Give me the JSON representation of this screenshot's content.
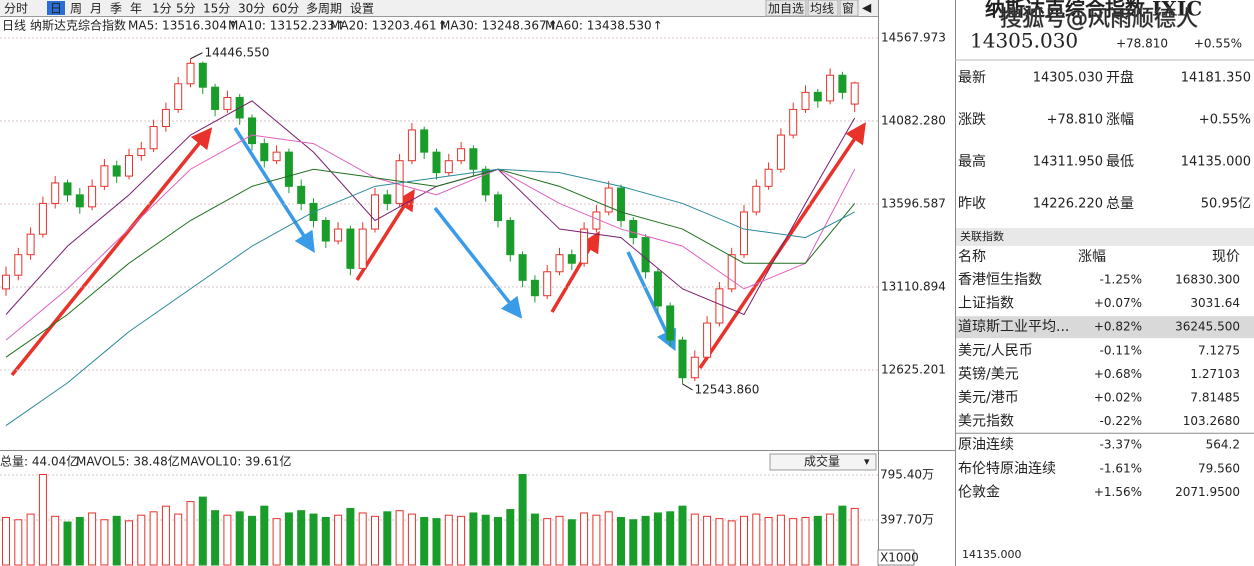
{
  "toolbar": {
    "tabs": [
      "分时",
      "日",
      "周",
      "月",
      "季",
      "年",
      "1分",
      "5分",
      "15分",
      "30分",
      "60分",
      "多周期",
      "设置"
    ],
    "buttons": [
      "加自选",
      "均线",
      "窗"
    ]
  },
  "legend": {
    "period": "日线",
    "name": "纳斯达克综合指数",
    "items": [
      {
        "label": "MA5: 13516.304",
        "arrow": "↑",
        "color": "#2b5566"
      },
      {
        "label": "MA10: 13152.233",
        "arrow": "↑",
        "color": "#7a1f6e"
      },
      {
        "label": "MA20: 13203.461",
        "arrow": "↑",
        "color": "#e060c0"
      },
      {
        "label": "MA30: 13248.367",
        "arrow": "↑",
        "color": "#1f6f1f"
      },
      {
        "label": "MA60: 13438.530",
        "arrow": "↑",
        "color": "#2a8a9a"
      }
    ]
  },
  "price_axis": {
    "ylim": [
      12157.1,
      14614.8
    ],
    "ticks": [
      14567.973,
      {
        "value": 14082.28,
        "label": "14082.280"
      },
      13596.587,
      13110.894,
      12625.201
    ]
  },
  "annotations": {
    "high": "14446.550",
    "low": "12543.860"
  },
  "candles": [
    [
      13100,
      13230,
      13060,
      13180
    ],
    [
      13180,
      13340,
      13150,
      13300
    ],
    [
      13300,
      13460,
      13270,
      13420
    ],
    [
      13420,
      13640,
      13400,
      13600
    ],
    [
      13600,
      13760,
      13570,
      13720
    ],
    [
      13720,
      13740,
      13610,
      13650
    ],
    [
      13650,
      13690,
      13540,
      13580
    ],
    [
      13580,
      13740,
      13560,
      13700
    ],
    [
      13700,
      13860,
      13680,
      13820
    ],
    [
      13820,
      13850,
      13720,
      13760
    ],
    [
      13760,
      13920,
      13740,
      13880
    ],
    [
      13880,
      13960,
      13850,
      13920
    ],
    [
      13920,
      14090,
      13900,
      14050
    ],
    [
      14050,
      14190,
      14020,
      14150
    ],
    [
      14150,
      14340,
      14130,
      14300
    ],
    [
      14300,
      14446.55,
      14280,
      14420
    ],
    [
      14420,
      14430,
      14240,
      14280
    ],
    [
      14280,
      14300,
      14110,
      14150
    ],
    [
      14150,
      14260,
      14130,
      14220
    ],
    [
      14220,
      14240,
      14060,
      14100
    ],
    [
      14100,
      14120,
      13910,
      13950
    ],
    [
      13950,
      13980,
      13810,
      13850
    ],
    [
      13850,
      13940,
      13830,
      13900
    ],
    [
      13900,
      13920,
      13660,
      13700
    ],
    [
      13700,
      13740,
      13560,
      13600
    ],
    [
      13600,
      13630,
      13460,
      13500
    ],
    [
      13500,
      13520,
      13340,
      13380
    ],
    [
      13380,
      13490,
      13360,
      13450
    ],
    [
      13450,
      13470,
      13180,
      13220
    ],
    [
      13220,
      13490,
      13200,
      13450
    ],
    [
      13450,
      13690,
      13430,
      13650
    ],
    [
      13650,
      13680,
      13560,
      13600
    ],
    [
      13600,
      13890,
      13580,
      13850
    ],
    [
      13850,
      14070,
      13830,
      14030
    ],
    [
      14030,
      14050,
      13860,
      13900
    ],
    [
      13900,
      13920,
      13740,
      13780
    ],
    [
      13780,
      13890,
      13760,
      13850
    ],
    [
      13850,
      13960,
      13830,
      13920
    ],
    [
      13920,
      13940,
      13760,
      13800
    ],
    [
      13800,
      13820,
      13610,
      13650
    ],
    [
      13650,
      13670,
      13460,
      13500
    ],
    [
      13500,
      13520,
      13260,
      13300
    ],
    [
      13300,
      13320,
      13110,
      13150
    ],
    [
      13150,
      13180,
      13020,
      13060
    ],
    [
      13060,
      13240,
      13040,
      13200
    ],
    [
      13200,
      13340,
      13180,
      13300
    ],
    [
      13300,
      13330,
      13210,
      13250
    ],
    [
      13250,
      13490,
      13230,
      13450
    ],
    [
      13450,
      13590,
      13430,
      13550
    ],
    [
      13550,
      13730,
      13530,
      13690
    ],
    [
      13690,
      13710,
      13460,
      13500
    ],
    [
      13500,
      13520,
      13360,
      13400
    ],
    [
      13400,
      13420,
      13160,
      13200
    ],
    [
      13200,
      13220,
      12960,
      13000
    ],
    [
      13000,
      13020,
      12760,
      12800
    ],
    [
      12800,
      12820,
      12543.86,
      12580
    ],
    [
      12580,
      12740,
      12560,
      12700
    ],
    [
      12700,
      12940,
      12680,
      12900
    ],
    [
      12900,
      13140,
      12880,
      13100
    ],
    [
      13100,
      13340,
      13080,
      13300
    ],
    [
      13300,
      13590,
      13280,
      13550
    ],
    [
      13550,
      13740,
      13530,
      13700
    ],
    [
      13700,
      13840,
      13680,
      13800
    ],
    [
      13800,
      14040,
      13780,
      14000
    ],
    [
      14000,
      14190,
      13980,
      14150
    ],
    [
      14150,
      14290,
      14130,
      14250
    ],
    [
      14250,
      14270,
      14160,
      14200
    ],
    [
      14200,
      14390,
      14180,
      14350
    ],
    [
      14350,
      14370,
      14210,
      14250
    ],
    [
      14181.35,
      14311.95,
      14135,
      14305.03
    ]
  ],
  "ma_x": [
    0,
    5,
    10,
    15,
    20,
    25,
    30,
    35,
    40,
    45,
    50,
    55,
    60,
    65,
    69
  ],
  "ma_lines": [
    {
      "color": "#7a1f6e",
      "values": [
        12950,
        13350,
        13650,
        14000,
        14200,
        13900,
        13500,
        13700,
        13800,
        13450,
        13400,
        13100,
        12950,
        13600,
        14100
      ]
    },
    {
      "color": "#e060c0",
      "values": [
        12800,
        13100,
        13450,
        13800,
        14000,
        13950,
        13750,
        13650,
        13800,
        13600,
        13450,
        13350,
        13100,
        13250,
        13800
      ]
    },
    {
      "color": "#1f6f1f",
      "values": [
        12700,
        12950,
        13250,
        13500,
        13700,
        13800,
        13750,
        13700,
        13800,
        13700,
        13550,
        13450,
        13250,
        13250,
        13600
      ]
    },
    {
      "color": "#2a8a9a",
      "values": [
        12300,
        12550,
        12850,
        13100,
        13350,
        13550,
        13700,
        13750,
        13800,
        13780,
        13700,
        13600,
        13450,
        13400,
        13550
      ]
    }
  ],
  "volume": {
    "header": [
      "总量: 44.04亿",
      "MAVOL5: 38.48亿",
      "MAVOL10: 39.61亿"
    ],
    "selector": "成交量",
    "unit": "X1000",
    "ylim": [
      0,
      839.6
    ],
    "ticks": [
      {
        "value": 795.4,
        "label": "795.40万"
      },
      {
        "value": 397.7,
        "label": "397.70万"
      }
    ],
    "values": [
      420,
      400,
      450,
      800,
      430,
      380,
      420,
      460,
      400,
      430,
      390,
      440,
      470,
      520,
      450,
      560,
      600,
      480,
      440,
      470,
      430,
      520,
      410,
      460,
      480,
      450,
      420,
      440,
      500,
      460,
      430,
      470,
      480,
      450,
      420,
      410,
      440,
      430,
      460,
      440,
      420,
      490,
      800,
      450,
      410,
      430,
      400,
      460,
      440,
      470,
      420,
      400,
      430,
      460,
      470,
      520,
      450,
      430,
      410,
      390,
      430,
      450,
      420,
      440,
      410,
      420,
      430,
      450,
      520,
      500
    ]
  },
  "quote_panel": {
    "title": "纳斯达克综合指数 IXIC",
    "price": "14305.030",
    "change": "+78.810",
    "pct": "+0.55%",
    "watermark": "搜狐号@风雨顺德人",
    "rows": [
      [
        "最新",
        "14305.030",
        "开盘",
        "14181.350"
      ],
      [
        "涨跌",
        "+78.810",
        "涨幅",
        "+0.55%"
      ],
      [
        "最高",
        "14311.950",
        "最低",
        "14135.000"
      ],
      [
        "昨收",
        "14226.220",
        "总量",
        "50.95亿"
      ]
    ]
  },
  "related": {
    "header": "关联指数",
    "columns": [
      "名称",
      "涨幅",
      "现价"
    ],
    "rows": [
      [
        "香港恒生指数",
        "-1.25%",
        "16830.300"
      ],
      [
        "上证指数",
        "+0.07%",
        "3031.64"
      ],
      [
        "道琼斯工业平均...",
        "+0.82%",
        "36245.500"
      ],
      [
        "美元/人民币",
        "-0.11%",
        "7.1275"
      ],
      [
        "英镑/美元",
        "+0.68%",
        "1.27103"
      ],
      [
        "美元/港币",
        "+0.02%",
        "7.81485"
      ],
      [
        "美元指数",
        "-0.22%",
        "103.2680"
      ],
      [
        "原油连续",
        "-3.37%",
        "564.2"
      ],
      [
        "布伦特原油连续",
        "-1.61%",
        "79.560"
      ],
      [
        "伦敦金",
        "+1.56%",
        "2071.9500"
      ]
    ]
  },
  "footer": "14135.000"
}
